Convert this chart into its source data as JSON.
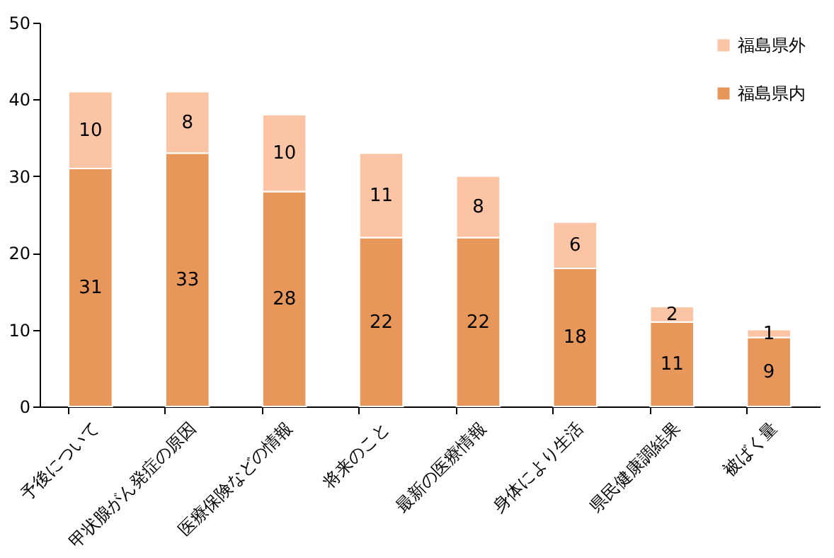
{
  "chart_data": {
    "type": "bar",
    "stacked": true,
    "categories": [
      "予後について",
      "甲状腺がん発症の原因",
      "医療保険などの情報",
      "将来のこと",
      "最新の医療情報",
      "身体により生活",
      "県民健康調結果",
      "被ばく量"
    ],
    "series": [
      {
        "name": "福島県内",
        "color": "#e8975a",
        "values": [
          31,
          33,
          28,
          22,
          22,
          18,
          11,
          9
        ]
      },
      {
        "name": "福島県外",
        "color": "#fbc4a4",
        "values": [
          10,
          8,
          10,
          11,
          8,
          6,
          2,
          1
        ]
      }
    ],
    "ylim": [
      0,
      50
    ],
    "yticks": [
      0,
      10,
      20,
      30,
      40,
      50
    ],
    "grid": false,
    "legend": "top right",
    "data_labels": true
  }
}
